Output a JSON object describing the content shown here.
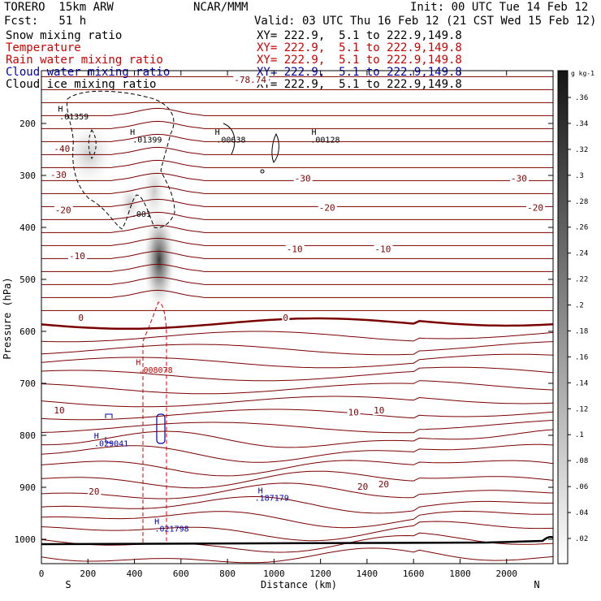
{
  "header": {
    "model": "TORERO  15km ARW",
    "org": "NCAR/MMM",
    "init": "Init: 00 UTC Tue 14 Feb 12",
    "fcst": "Fcst:   51 h",
    "valid": "Valid: 03 UTC Thu 16 Feb 12 (21 CST Wed 15 Feb 12)"
  },
  "legend": [
    {
      "name": "Snow mixing ratio",
      "xy": "XY= 222.9,  5.1 to 222.9,149.8",
      "color": "#000000"
    },
    {
      "name": "Temperature",
      "xy": "XY= 222.9,  5.1 to 222.9,149.8",
      "color": "#cc0000"
    },
    {
      "name": "Rain water mixing ratio",
      "xy": "XY= 222.9,  5.1 to 222.9,149.8",
      "color": "#cc0000"
    },
    {
      "name": "Cloud water mixing ratio",
      "xy": "XY= 222.9,  5.1 to 222.9,149.8",
      "color": "#0000aa"
    },
    {
      "name": "Cloud ice mixing ratio",
      "xy": "XY= 222.9,  5.1 to 222.9,149.8",
      "color": "#000000"
    }
  ],
  "chart_data": {
    "type": "cross-section",
    "xlabel": "Distance (km)",
    "ylabel": "Pressure (hPa)",
    "xlim": [
      0,
      2200
    ],
    "ylim": [
      1050,
      100
    ],
    "x_ticks": [
      0,
      200,
      400,
      600,
      800,
      1000,
      1200,
      1400,
      1600,
      1800,
      2000
    ],
    "y_ticks": [
      200,
      300,
      400,
      500,
      600,
      700,
      800,
      900,
      1000
    ],
    "end_labels": {
      "left": "S",
      "right": "N"
    },
    "colorbar": {
      "unit": "g kg-1",
      "ticks": [
        ".36",
        ".34",
        ".32",
        ".3",
        ".28",
        ".26",
        ".24",
        ".22",
        ".2",
        ".18",
        ".16",
        ".14",
        ".12",
        ".1",
        ".08",
        ".06",
        ".04",
        ".02"
      ]
    },
    "temperature_labels": [
      {
        "text": "-78.74",
        "x": 860,
        "p": 122,
        "color": "#800000"
      },
      {
        "text": "-40",
        "x": 85,
        "p": 255,
        "color": "#800000"
      },
      {
        "text": "-30",
        "x": 70,
        "p": 305,
        "color": "#800000"
      },
      {
        "text": "-30",
        "x": 1120,
        "p": 312,
        "color": "#800000"
      },
      {
        "text": "-30",
        "x": 2050,
        "p": 312,
        "color": "#800000"
      },
      {
        "text": "-20",
        "x": 90,
        "p": 373,
        "color": "#800000"
      },
      {
        "text": "-20",
        "x": 1225,
        "p": 368,
        "color": "#800000"
      },
      {
        "text": "-20",
        "x": 2120,
        "p": 368,
        "color": "#800000"
      },
      {
        "text": "-10",
        "x": 150,
        "p": 461,
        "color": "#800000"
      },
      {
        "text": "-10",
        "x": 1085,
        "p": 448,
        "color": "#800000"
      },
      {
        "text": "-10",
        "x": 1465,
        "p": 448,
        "color": "#800000"
      },
      {
        "text": "0",
        "x": 190,
        "p": 580,
        "color": "#800000"
      },
      {
        "text": "0",
        "x": 1070,
        "p": 580,
        "color": "#800000"
      },
      {
        "text": "10",
        "x": 85,
        "p": 758,
        "color": "#800000"
      },
      {
        "text": "10",
        "x": 1350,
        "p": 762,
        "color": "#800000"
      },
      {
        "text": "10",
        "x": 1460,
        "p": 758,
        "color": "#800000"
      },
      {
        "text": "20",
        "x": 235,
        "p": 914,
        "color": "#800000"
      },
      {
        "text": "20",
        "x": 1390,
        "p": 905,
        "color": "#800000"
      },
      {
        "text": "20",
        "x": 1480,
        "p": 900,
        "color": "#800000"
      }
    ],
    "annotations": [
      {
        "text": "H",
        "x": 85,
        "p": 177,
        "color": "#000000"
      },
      {
        "text": ".01359",
        "x": 140,
        "p": 192,
        "color": "#000000"
      },
      {
        "text": "H",
        "x": 395,
        "p": 222,
        "color": "#000000"
      },
      {
        "text": ".01399",
        "x": 455,
        "p": 237,
        "color": "#000000"
      },
      {
        "text": "H",
        "x": 760,
        "p": 222,
        "color": "#000000"
      },
      {
        "text": ".00638",
        "x": 815,
        "p": 237,
        "color": "#000000"
      },
      {
        "text": "H",
        "x": 1175,
        "p": 222,
        "color": "#000000"
      },
      {
        "text": ".00128",
        "x": 1220,
        "p": 237,
        "color": "#000000"
      },
      {
        "text": ".001",
        "x": 450,
        "p": 380,
        "color": "#000000"
      },
      {
        "text": "H",
        "x": 420,
        "p": 665,
        "color": "#cc0000"
      },
      {
        "text": ".008078",
        "x": 480,
        "p": 680,
        "color": "#cc0000"
      },
      {
        "text": "H",
        "x": 240,
        "p": 806,
        "color": "#0000aa"
      },
      {
        "text": ".029041",
        "x": 290,
        "p": 821,
        "color": "#0000aa"
      },
      {
        "text": "H",
        "x": 945,
        "p": 912,
        "color": "#0000aa"
      },
      {
        "text": ".187179",
        "x": 980,
        "p": 926,
        "color": "#0000aa"
      },
      {
        "text": "H",
        "x": 500,
        "p": 971,
        "color": "#0000aa"
      },
      {
        "text": ".021798",
        "x": 550,
        "p": 985,
        "color": "#0000aa"
      }
    ]
  }
}
